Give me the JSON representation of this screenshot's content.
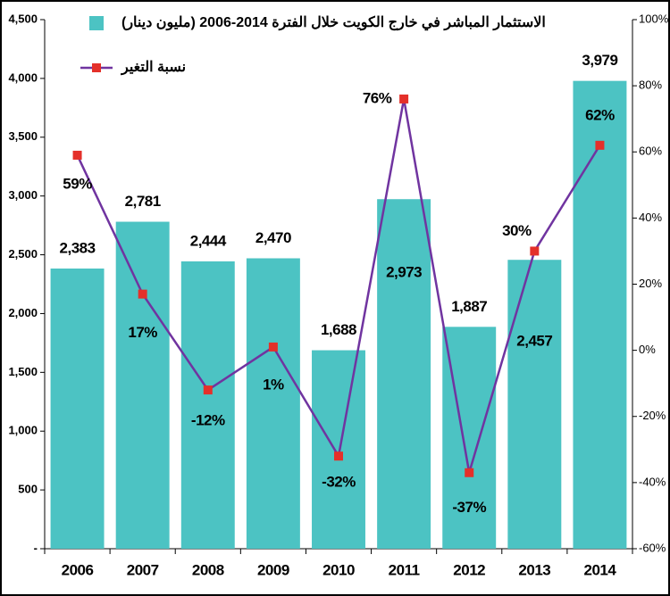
{
  "chart_data": {
    "type": "bar-line",
    "categories": [
      "2006",
      "2007",
      "2008",
      "2009",
      "2010",
      "2011",
      "2012",
      "2013",
      "2014"
    ],
    "series": [
      {
        "name": "الاستثمار المباشر في خارج الكويت خلال الفترة 2014-2006 (مليون دينار)",
        "type": "bar",
        "color": "#4cc3c3",
        "values": [
          2383,
          2781,
          2444,
          2470,
          1688,
          2973,
          1887,
          2457,
          3979
        ],
        "value_labels": [
          "2,383",
          "2,781",
          "2,444",
          "2,470",
          "1,688",
          "2,973",
          "1,887",
          "2,457",
          "3,979"
        ]
      },
      {
        "name": "نسبة التغير",
        "type": "line",
        "axis": "y2",
        "color": "#7034a0",
        "marker_color": "#e4302a",
        "values": [
          59,
          17,
          -12,
          1,
          -32,
          76,
          -37,
          30,
          62
        ],
        "value_labels": [
          "59%",
          "17%",
          "-12%",
          "1%",
          "-32%",
          "76%",
          "-37%",
          "30%",
          "62%"
        ]
      }
    ],
    "ylim": [
      0,
      4500
    ],
    "yticks": [
      {
        "value": 0,
        "label": "-"
      },
      500,
      {
        "value": 1000,
        "label": "1,000"
      },
      {
        "value": 1500,
        "label": "1,500"
      },
      {
        "value": 2000,
        "label": "2,000"
      },
      {
        "value": 2500,
        "label": "2,500"
      },
      {
        "value": 3000,
        "label": "3,000"
      },
      {
        "value": 3500,
        "label": "3,500"
      },
      {
        "value": 4000,
        "label": "4,000"
      },
      {
        "value": 4500,
        "label": "4,500"
      }
    ],
    "y2lim": [
      -60,
      100
    ],
    "y2ticks": [
      {
        "value": -60,
        "label": "-60%"
      },
      {
        "value": -40,
        "label": "-40%"
      },
      {
        "value": -20,
        "label": "-20%"
      },
      {
        "value": 0,
        "label": "0%"
      },
      {
        "value": 20,
        "label": "20%"
      },
      {
        "value": 40,
        "label": "40%"
      },
      {
        "value": 60,
        "label": "60%"
      },
      {
        "value": 80,
        "label": "80%"
      },
      {
        "value": 100,
        "label": "100%"
      }
    ],
    "legend": "top-left",
    "grid": false
  }
}
